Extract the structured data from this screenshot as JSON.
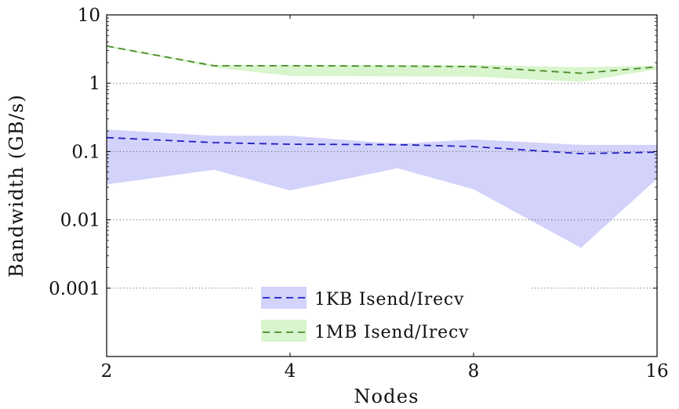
{
  "chart_data": {
    "type": "line",
    "title": "",
    "xlabel": "Nodes",
    "ylabel": "Bandwidth (GB/s)",
    "xscale": "log2",
    "yscale": "log10",
    "xlim": [
      2,
      16
    ],
    "ylim": [
      0.0001,
      10
    ],
    "x_ticks": [
      2,
      4,
      8,
      16
    ],
    "x_tick_labels": [
      "2",
      "4",
      "8",
      "16"
    ],
    "y_ticks": [
      0.001,
      0.01,
      0.1,
      1,
      10
    ],
    "y_tick_labels": [
      "0.001",
      "0.01",
      "0.1",
      "1",
      "10"
    ],
    "grid": "horizontal dotted",
    "legend_position": "bottom-center",
    "series": [
      {
        "name": "1KB Isend/Irecv",
        "line_color": "#1f1fbf",
        "band_color": "#d2d2fb",
        "line_style": "dashed",
        "x": [
          2,
          3,
          4,
          6,
          8,
          12,
          16
        ],
        "values": [
          0.16,
          0.135,
          0.128,
          0.126,
          0.118,
          0.093,
          0.098
        ],
        "band_upper": [
          0.21,
          0.17,
          0.17,
          0.13,
          0.15,
          0.125,
          0.125
        ],
        "band_lower": [
          0.033,
          0.054,
          0.027,
          0.057,
          0.028,
          0.0039,
          0.04
        ]
      },
      {
        "name": "1MB Isend/Irecv",
        "line_color": "#4a8a2a",
        "band_color": "#d8f5cd",
        "line_style": "dashed",
        "x": [
          2,
          3,
          4,
          6,
          8,
          12,
          16
        ],
        "values": [
          3.5,
          1.8,
          1.8,
          1.78,
          1.75,
          1.4,
          1.73
        ],
        "band_upper": [
          3.6,
          1.85,
          1.85,
          1.85,
          1.85,
          1.72,
          1.8
        ],
        "band_lower": [
          3.4,
          1.7,
          1.28,
          1.26,
          1.25,
          1.05,
          1.6
        ]
      }
    ]
  }
}
